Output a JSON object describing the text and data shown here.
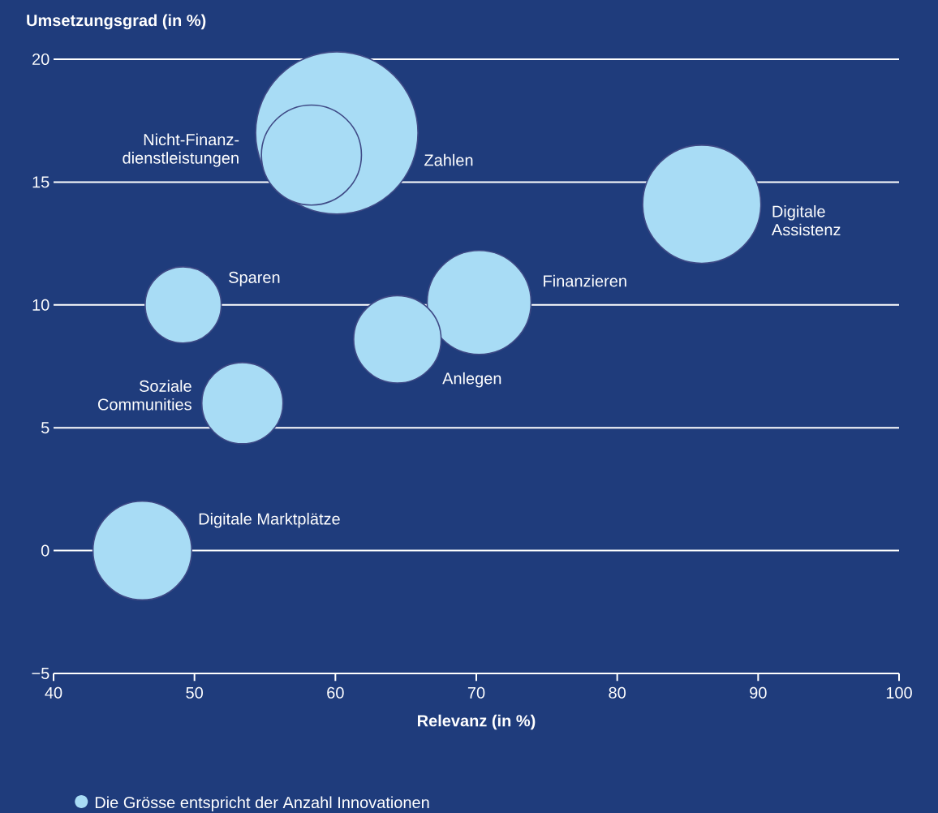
{
  "chart_data": {
    "type": "bubble",
    "xlabel": "Relevanz (in %)",
    "ylabel": "Umsetzungsgrad (in %)",
    "x": [
      60.1,
      58.3,
      86,
      49.2,
      70.2,
      64.4,
      53.4,
      46.3
    ],
    "values": [
      17,
      16.1,
      14.1,
      10,
      10.1,
      8.6,
      6,
      0
    ],
    "sizes": [
      1,
      0.38,
      0.53,
      0.22,
      0.41,
      0.29,
      0.25,
      0.37
    ],
    "color": "#a8dcf5",
    "marker": "circle",
    "grid": "y",
    "xlim": [
      40,
      100
    ],
    "ylim": [
      -5,
      20
    ],
    "xticks": [
      40,
      50,
      60,
      70,
      80,
      90,
      100
    ],
    "yticks": [
      {
        "value": -5,
        "label": "−5"
      },
      0,
      5,
      10,
      15,
      20
    ],
    "annotations": [
      "Zahlen",
      "Nicht-Finanz-dienstleistungen",
      "Digitale Assistenz",
      "Sparen",
      "Finanzieren",
      "Anlegen",
      "Soziale Communities",
      "Digitale Marktplätze",
      "Die Grösse entspricht der Anzahl Innovationen"
    ]
  }
}
